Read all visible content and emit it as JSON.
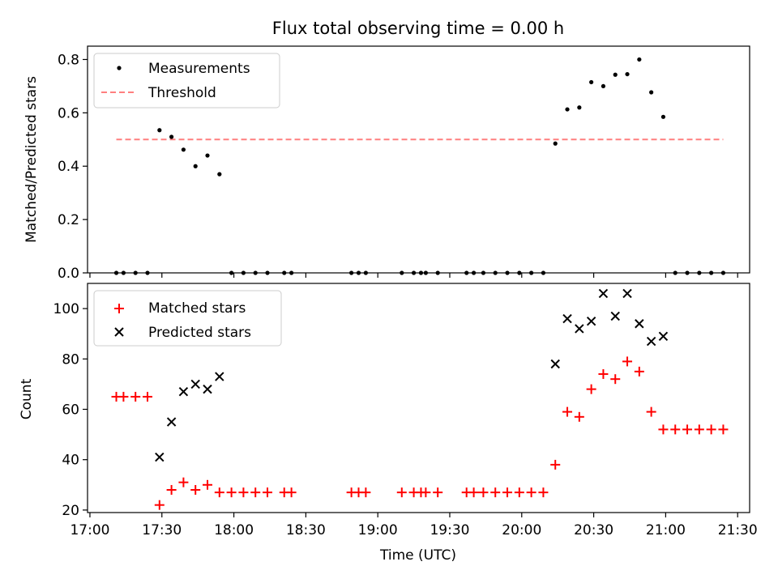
{
  "figure_title": "Flux total observing time = 0.00 h",
  "colors": {
    "threshold": "#ff7f7f",
    "measurement": "#000000",
    "matched": "#ff0000",
    "predicted": "#000000"
  },
  "chart_data": [
    {
      "type": "scatter",
      "title": "Flux total observing time = 0.00 h",
      "xlabel": "",
      "ylabel": "Matched/Predicted stars",
      "xlim": [
        "16:59",
        "21:35"
      ],
      "ylim": [
        0,
        0.85
      ],
      "yticks": [
        "0.0",
        "0.2",
        "0.4",
        "0.6",
        "0.8"
      ],
      "yticks_values": [
        0,
        0.2,
        0.4,
        0.6,
        0.8
      ],
      "xticks_values": [
        "17:00",
        "17:30",
        "18:00",
        "18:30",
        "19:00",
        "19:30",
        "20:00",
        "20:30",
        "21:00",
        "21:30"
      ],
      "legend_placement": "upper-left",
      "legend": [
        {
          "label": "Measurements",
          "kind": "dot"
        },
        {
          "label": "Threshold",
          "kind": "dash"
        }
      ],
      "series": [
        {
          "name": "Measurements",
          "points": [
            [
              "17:11",
              0
            ],
            [
              "17:14",
              0
            ],
            [
              "17:19",
              0
            ],
            [
              "17:24",
              0
            ],
            [
              "17:29",
              0.535
            ],
            [
              "17:34",
              0.51
            ],
            [
              "17:39",
              0.462
            ],
            [
              "17:44",
              0.4
            ],
            [
              "17:49",
              0.44
            ],
            [
              "17:54",
              0.37
            ],
            [
              "17:59",
              0
            ],
            [
              "18:04",
              0
            ],
            [
              "18:09",
              0
            ],
            [
              "18:14",
              0
            ],
            [
              "18:21",
              0
            ],
            [
              "18:24",
              0
            ],
            [
              "18:49",
              0
            ],
            [
              "18:52",
              0
            ],
            [
              "18:55",
              0
            ],
            [
              "19:10",
              0
            ],
            [
              "19:15",
              0
            ],
            [
              "19:18",
              0
            ],
            [
              "19:20",
              0
            ],
            [
              "19:25",
              0
            ],
            [
              "19:37",
              0
            ],
            [
              "19:40",
              0
            ],
            [
              "19:44",
              0
            ],
            [
              "19:49",
              0
            ],
            [
              "19:54",
              0
            ],
            [
              "19:59",
              0
            ],
            [
              "20:04",
              0
            ],
            [
              "20:09",
              0
            ],
            [
              "20:14",
              0.485
            ],
            [
              "20:19",
              0.613
            ],
            [
              "20:24",
              0.62
            ],
            [
              "20:29",
              0.715
            ],
            [
              "20:34",
              0.7
            ],
            [
              "20:39",
              0.743
            ],
            [
              "20:44",
              0.745
            ],
            [
              "20:49",
              0.8
            ],
            [
              "20:54",
              0.677
            ],
            [
              "20:59",
              0.585
            ],
            [
              "21:04",
              0
            ],
            [
              "21:09",
              0
            ],
            [
              "21:14",
              0
            ],
            [
              "21:19",
              0
            ],
            [
              "21:24",
              0
            ]
          ]
        },
        {
          "name": "Threshold",
          "points": [
            [
              "17:11",
              0.5
            ],
            [
              "21:24",
              0.5
            ]
          ]
        }
      ]
    },
    {
      "type": "scatter",
      "title": "",
      "xlabel": "Time (UTC)",
      "ylabel": "Count",
      "xlim": [
        "16:59",
        "21:35"
      ],
      "ylim": [
        19,
        110
      ],
      "yticks": [
        "20",
        "40",
        "60",
        "80",
        "100"
      ],
      "yticks_values": [
        20,
        40,
        60,
        80,
        100
      ],
      "xticks": [
        "17:00",
        "17:30",
        "18:00",
        "18:30",
        "19:00",
        "19:30",
        "20:00",
        "20:30",
        "21:00",
        "21:30"
      ],
      "legend_placement": "upper-left",
      "legend": [
        {
          "label": "Matched stars",
          "kind": "plus"
        },
        {
          "label": "Predicted stars",
          "kind": "x"
        }
      ],
      "series": [
        {
          "name": "Matched stars",
          "points": [
            [
              "17:11",
              65
            ],
            [
              "17:14",
              65
            ],
            [
              "17:19",
              65
            ],
            [
              "17:24",
              65
            ],
            [
              "17:29",
              22
            ],
            [
              "17:34",
              28
            ],
            [
              "17:39",
              31
            ],
            [
              "17:44",
              28
            ],
            [
              "17:49",
              30
            ],
            [
              "17:54",
              27
            ],
            [
              "17:59",
              27
            ],
            [
              "18:04",
              27
            ],
            [
              "18:09",
              27
            ],
            [
              "18:14",
              27
            ],
            [
              "18:21",
              27
            ],
            [
              "18:24",
              27
            ],
            [
              "18:49",
              27
            ],
            [
              "18:52",
              27
            ],
            [
              "18:55",
              27
            ],
            [
              "19:10",
              27
            ],
            [
              "19:15",
              27
            ],
            [
              "19:18",
              27
            ],
            [
              "19:20",
              27
            ],
            [
              "19:25",
              27
            ],
            [
              "19:37",
              27
            ],
            [
              "19:40",
              27
            ],
            [
              "19:44",
              27
            ],
            [
              "19:49",
              27
            ],
            [
              "19:54",
              27
            ],
            [
              "19:59",
              27
            ],
            [
              "20:04",
              27
            ],
            [
              "20:09",
              27
            ],
            [
              "20:14",
              38
            ],
            [
              "20:19",
              59
            ],
            [
              "20:24",
              57
            ],
            [
              "20:29",
              68
            ],
            [
              "20:34",
              74
            ],
            [
              "20:39",
              72
            ],
            [
              "20:44",
              79
            ],
            [
              "20:49",
              75
            ],
            [
              "20:54",
              59
            ],
            [
              "20:59",
              52
            ],
            [
              "21:04",
              52
            ],
            [
              "21:09",
              52
            ],
            [
              "21:14",
              52
            ],
            [
              "21:19",
              52
            ],
            [
              "21:24",
              52
            ]
          ]
        },
        {
          "name": "Predicted stars",
          "points": [
            [
              "17:29",
              41
            ],
            [
              "17:34",
              55
            ],
            [
              "17:39",
              67
            ],
            [
              "17:44",
              70
            ],
            [
              "17:49",
              68
            ],
            [
              "17:54",
              73
            ],
            [
              "20:14",
              78
            ],
            [
              "20:19",
              96
            ],
            [
              "20:24",
              92
            ],
            [
              "20:29",
              95
            ],
            [
              "20:34",
              106
            ],
            [
              "20:39",
              97
            ],
            [
              "20:44",
              106
            ],
            [
              "20:49",
              94
            ],
            [
              "20:54",
              87
            ],
            [
              "20:59",
              89
            ]
          ]
        }
      ]
    }
  ]
}
